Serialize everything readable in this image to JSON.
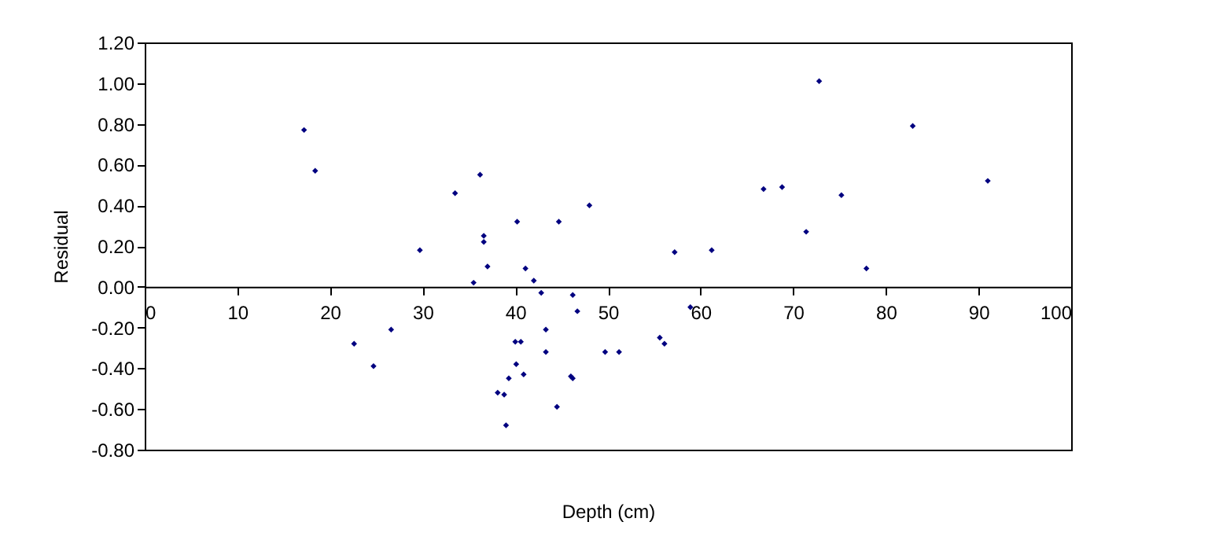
{
  "chart_data": {
    "type": "scatter",
    "xlabel": "Depth (cm)",
    "ylabel": "Residual",
    "x": [
      17.2,
      18.4,
      22.6,
      24.7,
      26.6,
      29.7,
      33.5,
      35.5,
      36.2,
      36.6,
      36.6,
      37.0,
      38.1,
      38.8,
      39.0,
      39.3,
      40.2,
      40.0,
      40.6,
      40.1,
      40.9,
      41.1,
      42.0,
      42.8,
      43.3,
      43.3,
      44.7,
      44.5,
      46.2,
      46.0,
      46.2,
      46.7,
      48.0,
      49.7,
      51.2,
      55.6,
      56.1,
      57.2,
      58.9,
      61.2,
      66.8,
      68.8,
      71.4,
      72.8,
      75.2,
      77.9,
      82.9,
      91.0
    ],
    "series": [
      {
        "color": "#000080",
        "values": [
          0.77,
          0.57,
          -0.28,
          -0.39,
          -0.21,
          0.18,
          0.46,
          0.02,
          0.55,
          0.25,
          0.22,
          0.1,
          -0.52,
          -0.53,
          -0.68,
          -0.45,
          0.32,
          -0.27,
          -0.27,
          -0.38,
          -0.43,
          0.09,
          0.03,
          -0.03,
          -0.21,
          -0.32,
          0.32,
          -0.59,
          -0.04,
          -0.44,
          -0.45,
          -0.12,
          0.4,
          -0.32,
          -0.32,
          -0.25,
          -0.28,
          0.17,
          -0.1,
          0.18,
          0.48,
          0.49,
          0.27,
          1.01,
          0.45,
          0.09,
          0.79,
          0.52
        ]
      }
    ],
    "xlim": [
      0,
      100
    ],
    "xticks": [
      0,
      10,
      20,
      30,
      40,
      50,
      60,
      70,
      80,
      90,
      100
    ],
    "ylim": [
      -0.8,
      1.2
    ],
    "yticks": [
      {
        "value": -0.8,
        "label": "-0.80"
      },
      {
        "value": -0.6,
        "label": "-0.60"
      },
      {
        "value": -0.4,
        "label": "-0.40"
      },
      {
        "value": -0.2,
        "label": "-0.20"
      },
      {
        "value": 0,
        "label": "0.00"
      },
      {
        "value": 0.2,
        "label": "0.20"
      },
      {
        "value": 0.4,
        "label": "0.40"
      },
      {
        "value": 0.6,
        "label": "0.60"
      },
      {
        "value": 0.8,
        "label": "0.80"
      },
      {
        "value": 1.0,
        "label": "1.00"
      },
      {
        "value": 1.2,
        "label": "1.20"
      }
    ],
    "marker": "diamond",
    "grid": false
  }
}
